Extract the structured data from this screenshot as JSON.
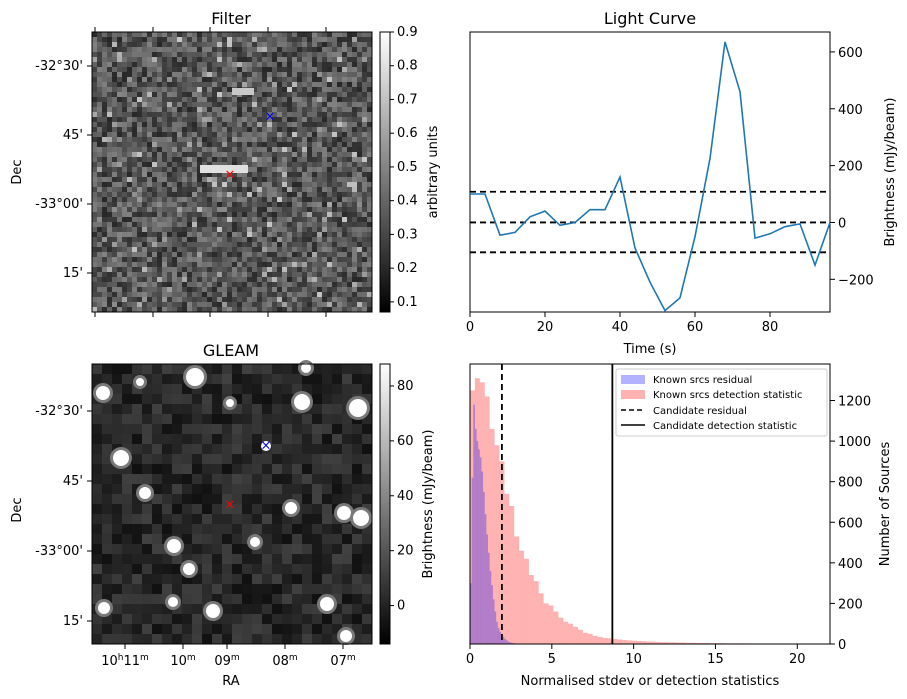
{
  "panels": {
    "filter": {
      "title": "Filter",
      "ylabel": "Dec",
      "dec_ticks": [
        "-32°30'",
        "45'",
        "-33°00'",
        "15'"
      ],
      "colorbar": {
        "label": "arbitrary units",
        "ticks": [
          "0.9",
          "0.8",
          "0.7",
          "0.6",
          "0.5",
          "0.4",
          "0.3",
          "0.2",
          "0.1"
        ],
        "range": [
          0.07,
          0.9
        ]
      }
    },
    "gleam": {
      "title": "GLEAM",
      "ylabel": "Dec",
      "xlabel": "RA",
      "dec_ticks": [
        "-32°30'",
        "45'",
        "-33°00'",
        "15'"
      ],
      "ra_ticks": [
        {
          "main": "10",
          "sup1": "h",
          "mid": "11",
          "sup2": "m"
        },
        {
          "main": "10",
          "sup2": "m"
        },
        {
          "main": "09",
          "sup2": "m"
        },
        {
          "main": "08",
          "sup2": "m"
        },
        {
          "main": "07",
          "sup2": "m"
        }
      ],
      "colorbar": {
        "label": "Brightness (mJy/beam)",
        "ticks": [
          "80",
          "60",
          "40",
          "20",
          "0"
        ],
        "range": [
          -14,
          88
        ]
      }
    }
  },
  "markers": {
    "candidate_color": "#ff0000",
    "target_color": "#0000ff",
    "symbol": "×"
  },
  "chart_data": [
    {
      "type": "line",
      "title": "Light Curve",
      "xlabel": "Time (s)",
      "ylabel": "Brightness (mJy/beam)",
      "xlim": [
        0,
        96
      ],
      "ylim": [
        -315,
        670
      ],
      "xticks": [
        0,
        20,
        40,
        60,
        80
      ],
      "yticks": [
        -200,
        0,
        200,
        400,
        600
      ],
      "x": [
        0,
        4,
        8,
        12,
        16,
        20,
        24,
        28,
        32,
        36,
        40,
        44,
        48,
        52,
        56,
        60,
        64,
        68,
        72,
        76,
        80,
        84,
        88,
        92,
        96
      ],
      "series": [
        {
          "color": "#1f77b4",
          "values": [
            100,
            100,
            -45,
            -35,
            20,
            40,
            -10,
            0,
            45,
            45,
            160,
            -90,
            -210,
            -310,
            -265,
            -50,
            225,
            635,
            460,
            -55,
            -40,
            -15,
            -5,
            -150,
            0
          ]
        }
      ],
      "hlines": [
        {
          "y": 108,
          "style": "dashed",
          "color": "#000000"
        },
        {
          "y": 0,
          "style": "dashed",
          "color": "#000000"
        },
        {
          "y": -105,
          "style": "dashed",
          "color": "#000000"
        }
      ]
    },
    {
      "type": "histogram",
      "xlabel": "Normalised stdev or detection statistics",
      "ylabel": "Number of Sources",
      "xlim": [
        0,
        22
      ],
      "ylim": [
        0,
        1380
      ],
      "xticks": [
        0,
        5,
        10,
        15,
        20
      ],
      "yticks": [
        0,
        200,
        400,
        600,
        800,
        1000,
        1200
      ],
      "legend_position": "upper right",
      "series": [
        {
          "name": "Known srcs residual",
          "color": "#0000ff",
          "opacity": 0.3,
          "bin_width": 0.1,
          "x": [
            0.05,
            0.15,
            0.25,
            0.35,
            0.45,
            0.55,
            0.65,
            0.75,
            0.85,
            0.95,
            1.05,
            1.15,
            1.25,
            1.35,
            1.45,
            1.55,
            1.65,
            1.75,
            1.85,
            1.95,
            2.05,
            2.15,
            2.25,
            2.35,
            2.45,
            2.55,
            2.65,
            2.75,
            2.85,
            2.95
          ],
          "values": [
            300,
            820,
            1180,
            1060,
            1000,
            960,
            920,
            850,
            750,
            640,
            540,
            450,
            360,
            290,
            220,
            160,
            110,
            80,
            60,
            45,
            35,
            25,
            18,
            12,
            9,
            6,
            4,
            3,
            2,
            1
          ]
        },
        {
          "name": "Known srcs detection statistic",
          "color": "#ff0000",
          "opacity": 0.3,
          "bin_width": 0.3,
          "x": [
            0.15,
            0.45,
            0.75,
            1.05,
            1.35,
            1.65,
            1.95,
            2.25,
            2.55,
            2.85,
            3.15,
            3.45,
            3.75,
            4.05,
            4.35,
            4.65,
            4.95,
            5.25,
            5.55,
            5.85,
            6.15,
            6.45,
            6.75,
            7.05,
            7.35,
            7.65,
            7.95,
            8.25,
            8.55,
            8.85,
            9.15,
            9.45,
            9.75,
            10.05,
            10.35,
            10.65,
            10.95,
            11.25,
            11.55,
            11.85,
            12.15,
            12.45,
            12.75,
            13.05,
            13.35,
            13.65,
            13.95,
            14.25,
            14.55,
            14.85,
            15.15,
            15.45,
            15.75,
            16.05,
            16.35,
            16.65,
            16.95,
            17.25,
            17.55,
            17.85,
            18.15,
            18.45,
            18.75,
            19.05,
            19.35,
            19.65,
            19.95,
            20.25,
            20.55,
            20.85,
            21.15,
            21.45,
            21.75
          ],
          "values": [
            1250,
            1310,
            1290,
            1220,
            1060,
            980,
            900,
            740,
            680,
            530,
            460,
            420,
            340,
            310,
            250,
            200,
            190,
            160,
            130,
            110,
            100,
            85,
            70,
            55,
            50,
            40,
            35,
            30,
            28,
            25,
            22,
            20,
            18,
            16,
            15,
            14,
            12,
            11,
            10,
            9,
            8,
            8,
            7,
            7,
            6,
            6,
            5,
            5,
            5,
            4,
            4,
            4,
            3,
            3,
            3,
            3,
            3,
            2,
            2,
            2,
            2,
            2,
            2,
            2,
            2,
            1,
            1,
            1,
            1,
            1,
            1,
            1,
            1
          ]
        }
      ],
      "vlines": [
        {
          "name": "Candidate residual",
          "x": 1.95,
          "style": "dashed",
          "color": "#000000"
        },
        {
          "name": "Candidate detection statistic",
          "x": 8.7,
          "style": "solid",
          "color": "#000000"
        }
      ]
    }
  ]
}
